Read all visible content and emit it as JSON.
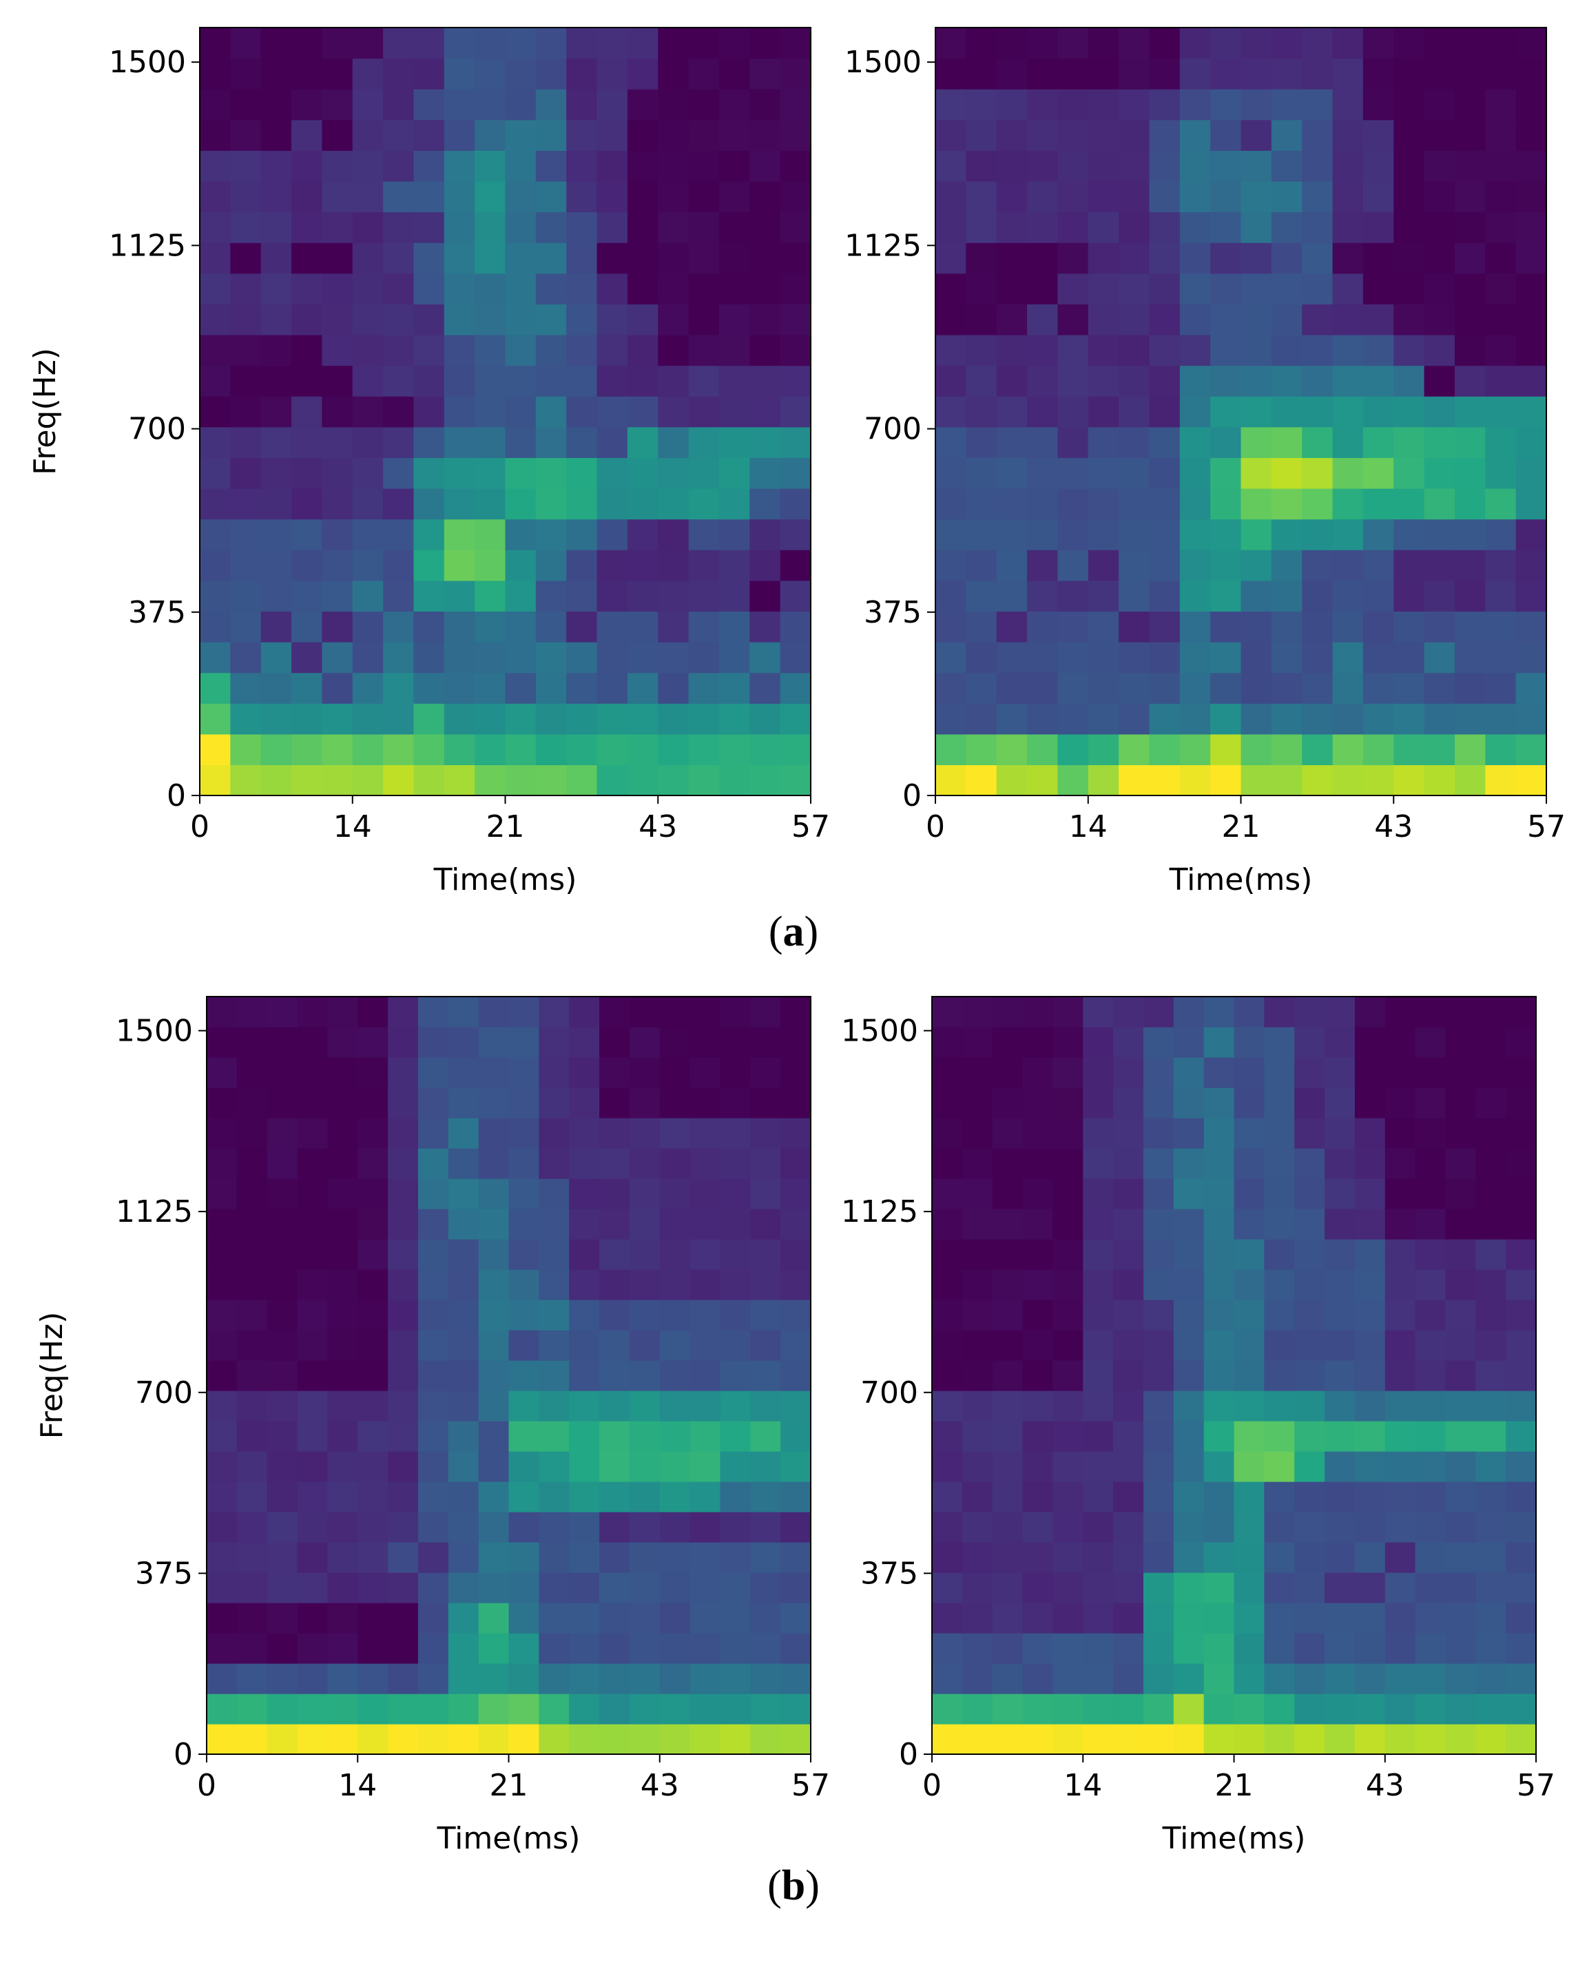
{
  "figure": {
    "labels": [
      {
        "open": "(",
        "letter": "a",
        "close": ")"
      },
      {
        "open": "(",
        "letter": "b",
        "close": ")"
      }
    ]
  },
  "chart_data": [
    {
      "type": "heatmap",
      "panel": "(a) left",
      "xlabel": "Time(ms)",
      "ylabel": "Freq(Hz)",
      "xticks": [
        "0",
        "14",
        "21",
        "43",
        "57"
      ],
      "yticks": [
        "0",
        "375",
        "700",
        "1125",
        "1500"
      ],
      "colormap": "viridis",
      "value_range": [
        0,
        1
      ],
      "rows_bottom_to_top": [
        "98888888877776666666",
        "97777777666666666666",
        "75555556555555555555",
        "64443454443433434434",
        "43424343444443333343",
        "33232343444323323323",
        "33333435565332222212",
        "33333336775432222221",
        "33333335774443223322",
        "22222224556665555533",
        "22222235556665555544",
        "22222223443433545555",
        "11121112333433322222",
        "11111222333332222222",
        "11112222334332211111",
        "22222222444432211111",
        "22222223444332111111",
        "21211223454431111111",
        "22222222454332111111",
        "22222233454422111111",
        "22222223454322111111",
        "11121222344422111111",
        "11111223333422111111",
        "11111222333322211111",
        "11111122333322211111"
      ]
    },
    {
      "type": "heatmap",
      "panel": "(a) right",
      "xlabel": "Time(ms)",
      "ylabel": "",
      "xticks": [
        "0",
        "14",
        "21",
        "43",
        "57"
      ],
      "yticks": [
        "0",
        "375",
        "700",
        "1125",
        "1500"
      ],
      "colormap": "viridis",
      "value_range": [
        0,
        1
      ],
      "rows_bottom_to_top": [
        "99887899998888888899",
        "77776677787767766766",
        "33333334454444444444",
        "33333333433334333334",
        "33333333443334334333",
        "33233322433333333333",
        "33322233554433322222",
        "33323233555433322222",
        "33333333556555433332",
        "33333333567776666665",
        "33333333568887766655",
        "33332333557765666655",
        "22222222455555555555",
        "22222222444444441222",
        "22222222233333322111",
        "11121222333322211111",
        "11112222333332111111",
        "21111222322331111111",
        "22222222334332211111",
        "22222223444432211111",
        "22222223444332211111",
        "22222223432432211111",
        "22222222333332111111",
        "11111111222222111111",
        "11111111222222111111"
      ]
    },
    {
      "type": "heatmap",
      "panel": "(b) left",
      "xlabel": "Time(ms)",
      "ylabel": "Freq(Hz)",
      "xticks": [
        "0",
        "14",
        "21",
        "43",
        "57"
      ],
      "yticks": [
        "0",
        "375",
        "700",
        "1125",
        "1500"
      ],
      "colormap": "viridis",
      "value_range": [
        0,
        1
      ],
      "rows_bottom_to_top": [
        "99999999999888888888",
        "66666666677655555555",
        "33333333555444444444",
        "11111113565333333333",
        "11111113564333333333",
        "22222223444333333333",
        "22222232344333333333",
        "22222223343332222222",
        "22222223345555555444",
        "22222223435566666555",
        "22222223436666666665",
        "22222223345555555555",
        "11111123344433333333",
        "11111123343333333333",
        "11111123344433333333",
        "11111123344322222222",
        "11111123343322222222",
        "11111123443322222222",
        "11111124443322222222",
        "11111124333222222222",
        "11111123433222222222",
        "11111123333221111111",
        "11111123333221111111",
        "11111123333221111111",
        "11111123333221111111"
      ]
    },
    {
      "type": "heatmap",
      "panel": "(b) right",
      "xlabel": "Time(ms)",
      "ylabel": "",
      "xticks": [
        "0",
        "14",
        "21",
        "43",
        "57"
      ],
      "yticks": [
        "0",
        "375",
        "700",
        "1125",
        "1500"
      ],
      "colormap": "viridis",
      "value_range": [
        0,
        1
      ],
      "rows_bottom_to_top": [
        "99999999988888888888",
        "66666666866655555555",
        "33333335565444444444",
        "33333335665333333333",
        "22222225665333333333",
        "22222225665332233333",
        "22222223455333323333",
        "22222223445333333333",
        "22222223445333333333",
        "22222223457764444444",
        "22222223467766666665",
        "22222223455554444444",
        "11111222344333322222",
        "11111222344333322222",
        "11111222344333322222",
        "11111223344333322222",
        "11111223344333322222",
        "11111223343332211111",
        "11111223443332211111",
        "11111223443332211111",
        "11111223343322211111",
        "11111223443322111111",
        "11111223433322111111",
        "11111223343322111111",
        "11111222333222111111"
      ]
    }
  ]
}
